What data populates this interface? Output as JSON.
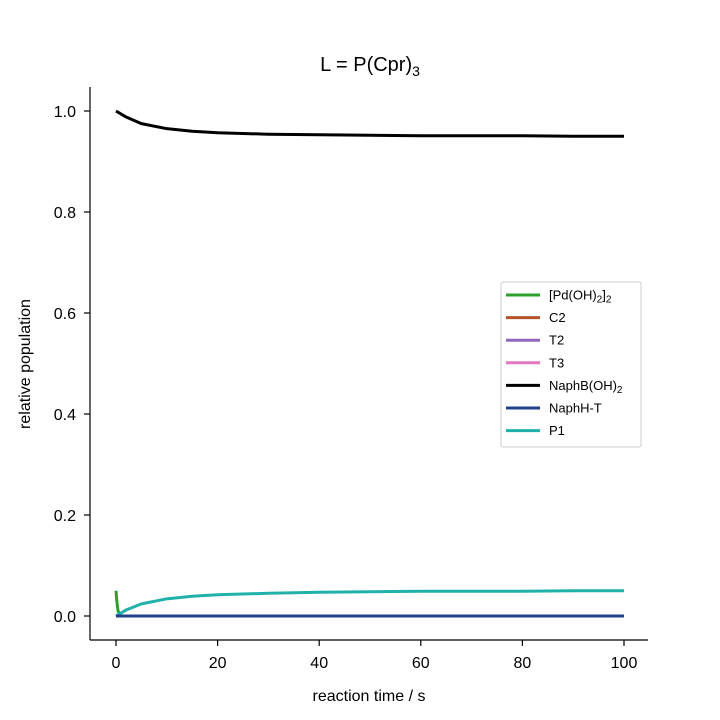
{
  "chart_data": {
    "type": "line",
    "title": {
      "main": "L = P(Cpr)",
      "sub": "3"
    },
    "xlabel": "reaction time / s",
    "ylabel": "relative population",
    "xlim": [
      -5,
      105
    ],
    "ylim": [
      -0.05,
      1.05
    ],
    "xticks": [
      0,
      20,
      40,
      60,
      80,
      100
    ],
    "xtick_labels": [
      "0",
      "20",
      "40",
      "60",
      "80",
      "100"
    ],
    "yticks": [
      0.0,
      0.2,
      0.4,
      0.6,
      0.8,
      1.0
    ],
    "ytick_labels": [
      "0.0",
      "0.2",
      "0.4",
      "0.6",
      "0.8",
      "1.0"
    ],
    "grid": false,
    "legend_position": "center-right",
    "series": [
      {
        "name": "[Pd(OH)2]2",
        "label_main": "[Pd(OH)",
        "label_sub1": "2",
        "label_mid": "]",
        "label_sub2": "2",
        "color": "#2ca02c",
        "x": [
          0,
          0.15,
          0.4,
          1,
          100
        ],
        "y": [
          0.05,
          0.03,
          0.01,
          0.0,
          0.0
        ]
      },
      {
        "name": "C2",
        "label_main": "C2",
        "color": "#b5542a",
        "x": [
          0,
          100
        ],
        "y": [
          0.0,
          0.0
        ]
      },
      {
        "name": "T2",
        "label_main": "T2",
        "color": "#9467bd",
        "x": [
          0,
          100
        ],
        "y": [
          0.0,
          0.0
        ]
      },
      {
        "name": "T3",
        "label_main": "T3",
        "color": "#e377c2",
        "x": [
          0,
          100
        ],
        "y": [
          0.0,
          0.0
        ]
      },
      {
        "name": "NaphB(OH)2",
        "label_main": "NaphB(OH)",
        "label_sub1": "2",
        "color": "#000000",
        "x": [
          0,
          2,
          5,
          10,
          15,
          20,
          30,
          40,
          50,
          60,
          70,
          80,
          90,
          100
        ],
        "y": [
          1.0,
          0.988,
          0.975,
          0.965,
          0.96,
          0.957,
          0.954,
          0.953,
          0.952,
          0.951,
          0.951,
          0.951,
          0.95,
          0.95
        ]
      },
      {
        "name": "NaphH-T",
        "label_main": "NaphH-T",
        "color": "#23408e",
        "x": [
          0,
          100
        ],
        "y": [
          0.0,
          0.0
        ]
      },
      {
        "name": "P1",
        "label_main": "P1",
        "color": "#20b2aa",
        "x": [
          0,
          2,
          5,
          10,
          15,
          20,
          30,
          40,
          50,
          60,
          70,
          80,
          90,
          100
        ],
        "y": [
          0.0,
          0.012,
          0.024,
          0.034,
          0.039,
          0.042,
          0.045,
          0.047,
          0.048,
          0.049,
          0.049,
          0.049,
          0.05,
          0.05
        ]
      }
    ]
  }
}
